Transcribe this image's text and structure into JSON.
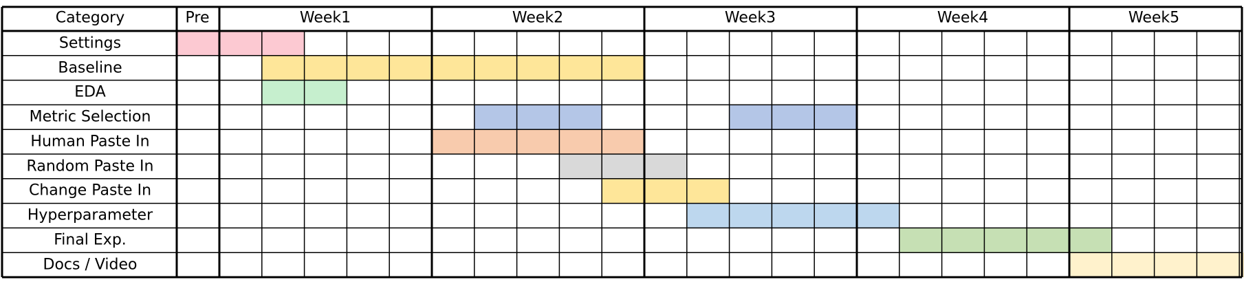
{
  "chart_data": {
    "type": "table",
    "header": {
      "category_label": "Category",
      "pre_label": "Pre",
      "weeks": [
        "Week1",
        "Week2",
        "Week3",
        "Week4",
        "Week5"
      ]
    },
    "days_per_week": 5,
    "pre_slots": 1,
    "tasks": [
      {
        "name": "Settings",
        "start": 0,
        "end": 2,
        "color": "#fcc9d2"
      },
      {
        "name": "Baseline",
        "start": 2,
        "end": 10,
        "color": "#fee699"
      },
      {
        "name": "EDA",
        "start": 2,
        "end": 3,
        "color": "#c6efce"
      },
      {
        "name": "Metric Selection",
        "start": 7,
        "end": 9,
        "color": "#b4c6e7"
      },
      {
        "name": "Metric Selection",
        "start": 13,
        "end": 15,
        "color": "#b4c6e7"
      },
      {
        "name": "Human Paste In",
        "start": 6,
        "end": 10,
        "color": "#f8cbad"
      },
      {
        "name": "Random Paste In",
        "start": 9,
        "end": 11,
        "color": "#d9d9d9"
      },
      {
        "name": "Change Paste In",
        "start": 10,
        "end": 12,
        "color": "#fee699"
      },
      {
        "name": "Hyperparameter",
        "start": 12,
        "end": 16,
        "color": "#bdd7ee"
      },
      {
        "name": "Final Exp.",
        "start": 17,
        "end": 21,
        "color": "#c6e0b4"
      },
      {
        "name": "Docs / Video",
        "start": 21,
        "end": 25,
        "color": "#fff2cc"
      }
    ],
    "rows": [
      "Settings",
      "Baseline",
      "EDA",
      "Metric Selection",
      "Human Paste In",
      "Random Paste In",
      "Change Paste In",
      "Hyperparameter",
      "Final Exp.",
      "Docs / Video"
    ]
  }
}
